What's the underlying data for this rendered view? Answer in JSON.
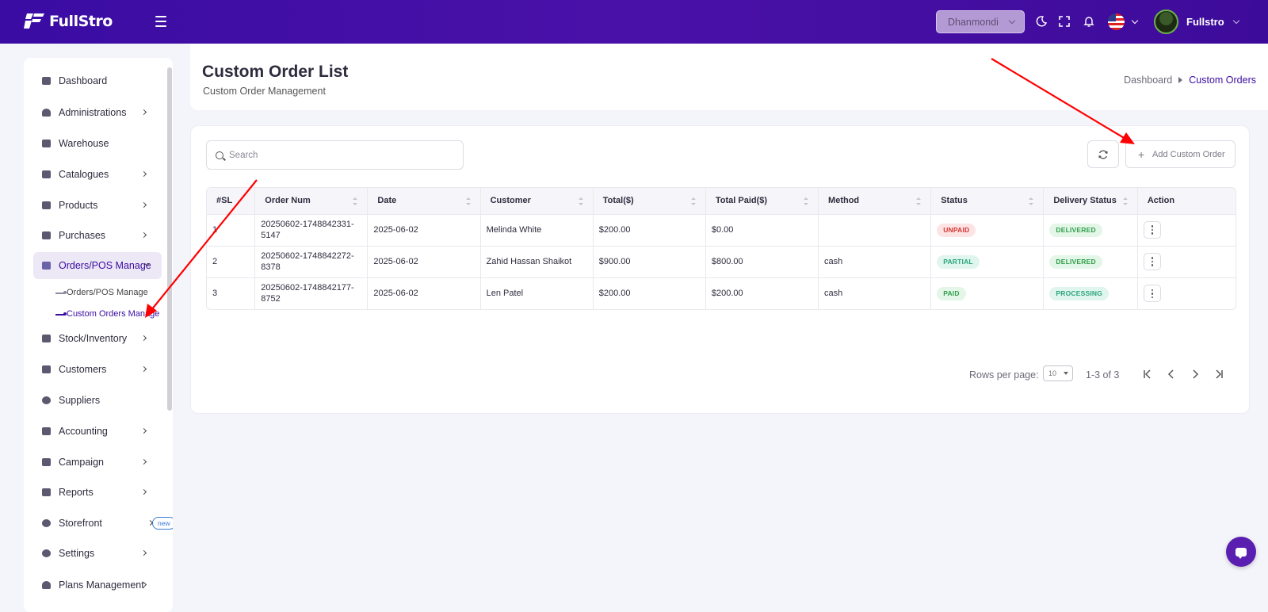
{
  "topbar": {
    "logo_text": "FullStro",
    "branch": "Dhanmondi",
    "username": "Fullstro"
  },
  "sidebar": {
    "items": [
      {
        "label": "Dashboard",
        "icon": "dashboard-icon",
        "arrow": false
      },
      {
        "label": "Administrations",
        "icon": "user-icon",
        "arrow": true
      },
      {
        "label": "Warehouse",
        "icon": "warehouse-icon",
        "arrow": false
      },
      {
        "label": "Catalogues",
        "icon": "catalogue-icon",
        "arrow": true
      },
      {
        "label": "Products",
        "icon": "products-icon",
        "arrow": true
      },
      {
        "label": "Purchases",
        "icon": "lock-icon",
        "arrow": true
      },
      {
        "label": "Orders/POS Manage",
        "icon": "clipboard-icon",
        "arrow": true,
        "open": true
      },
      {
        "label": "Stock/Inventory",
        "icon": "stock-icon",
        "arrow": true
      },
      {
        "label": "Customers",
        "icon": "customers-icon",
        "arrow": true
      },
      {
        "label": "Suppliers",
        "icon": "suppliers-icon",
        "arrow": false
      },
      {
        "label": "Accounting",
        "icon": "accounting-icon",
        "arrow": true
      },
      {
        "label": "Campaign",
        "icon": "campaign-icon",
        "arrow": true
      },
      {
        "label": "Reports",
        "icon": "reports-icon",
        "arrow": true
      },
      {
        "label": "Storefront",
        "icon": "storefront-icon",
        "arrow": true,
        "badge": "new"
      },
      {
        "label": "Settings",
        "icon": "settings-icon",
        "arrow": true
      },
      {
        "label": "Plans Management",
        "icon": "plans-icon",
        "arrow": true
      }
    ],
    "subitems": [
      {
        "label": "Orders/POS Manage",
        "active": false
      },
      {
        "label": "Custom Orders Manage",
        "active": true
      }
    ]
  },
  "header": {
    "title": "Custom Order List",
    "subtitle": "Custom Order Management",
    "breadcrumb_home": "Dashboard",
    "breadcrumb_current": "Custom Orders"
  },
  "toolbar": {
    "search_placeholder": "Search",
    "add_label": "Add Custom Order"
  },
  "table": {
    "columns": [
      "#SL",
      "Order Num",
      "Date",
      "Customer",
      "Total($)",
      "Total Paid($)",
      "Method",
      "Status",
      "Delivery Status",
      "Action"
    ],
    "rows": [
      {
        "sl": "1",
        "order_num": "20250602-1748842331-5147",
        "date": "2025-06-02",
        "customer": "Melinda White",
        "total": "$200.00",
        "paid": "$0.00",
        "method": "",
        "status": "UNPAID",
        "delivery": "DELIVERED"
      },
      {
        "sl": "2",
        "order_num": "20250602-1748842272-8378",
        "date": "2025-06-02",
        "customer": "Zahid Hassan Shaikot",
        "total": "$900.00",
        "paid": "$800.00",
        "method": "cash",
        "status": "PARTIAL",
        "delivery": "DELIVERED"
      },
      {
        "sl": "3",
        "order_num": "20250602-1748842177-8752",
        "date": "2025-06-02",
        "customer": "Len Patel",
        "total": "$200.00",
        "paid": "$200.00",
        "method": "cash",
        "status": "PAID",
        "delivery": "PROCESSING"
      }
    ]
  },
  "pagination": {
    "rows_per_page_label": "Rows per page:",
    "rows_per_page": "10",
    "range": "1-3 of 3"
  },
  "colors": {
    "brand": "#3a0ca3",
    "unpaid": "#d63333",
    "paid": "#2e9e4a",
    "annotation": "#ff0000"
  }
}
